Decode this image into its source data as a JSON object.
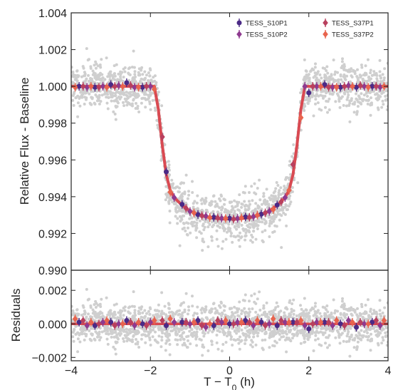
{
  "chart_data": [
    {
      "type": "scatter",
      "panel": "top",
      "title": "",
      "xlabel": "",
      "ylabel": "Relative Flux - Baseline",
      "xlim": [
        -4,
        4
      ],
      "ylim": [
        0.99,
        1.004
      ],
      "yticks": [
        "0.990",
        "0.992",
        "0.994",
        "0.996",
        "0.998",
        "1.000",
        "1.002",
        "1.004"
      ],
      "legend_position": "top-right",
      "model": {
        "name": "",
        "color": "#d94a52",
        "x": [
          -4.0,
          -1.9,
          -1.8,
          -1.7,
          -1.6,
          -1.5,
          -1.4,
          -1.2,
          -1.0,
          -0.8,
          -0.6,
          -0.4,
          -0.2,
          0.0,
          0.2,
          0.4,
          0.6,
          0.8,
          1.0,
          1.2,
          1.4,
          1.5,
          1.6,
          1.7,
          1.8,
          1.9,
          4.0
        ],
        "y": [
          1.0,
          1.0,
          0.99875,
          0.9968,
          0.9952,
          0.99435,
          0.99395,
          0.99353,
          0.99322,
          0.99303,
          0.9929,
          0.99283,
          0.99279,
          0.99278,
          0.99279,
          0.99283,
          0.9929,
          0.99303,
          0.99322,
          0.99353,
          0.99395,
          0.99435,
          0.9952,
          0.9968,
          0.99875,
          1.0,
          1.0
        ]
      },
      "series": [
        {
          "name": "TESS_S10P1",
          "color": "#4b2a86",
          "marker": "circle",
          "x": [
            -3.8,
            -3.4,
            -3.0,
            -2.6,
            -2.2,
            -1.6,
            -1.2,
            -0.8,
            -0.4,
            0.0,
            0.4,
            0.8,
            1.2,
            2.0,
            2.4,
            2.8,
            3.2,
            3.6
          ],
          "y": [
            1.0,
            0.99995,
            1.0001,
            1.0002,
            0.99995,
            0.99535,
            0.99358,
            0.99303,
            0.99288,
            0.99282,
            0.9929,
            0.99305,
            0.99355,
            0.99965,
            1.0001,
            0.99995,
            0.99995,
            1.0
          ]
        },
        {
          "name": "TESS_S10P2",
          "color": "#8e3a8f",
          "marker": "diamond",
          "x": [
            -3.6,
            -3.2,
            -2.8,
            -2.4,
            -2.0,
            -1.4,
            -1.0,
            -0.6,
            -0.2,
            0.2,
            0.6,
            1.0,
            1.4,
            1.9,
            2.2,
            2.6,
            3.0,
            3.4,
            3.8
          ],
          "y": [
            0.99995,
            1.0,
            1.00005,
            0.99995,
            1.0,
            0.99395,
            0.9932,
            0.99295,
            0.99283,
            0.99282,
            0.99292,
            0.9932,
            0.99395,
            1.0,
            1.0,
            0.99995,
            1.00005,
            1.0,
            0.99995
          ]
        },
        {
          "name": "TESS_S37P1",
          "color": "#b8405e",
          "marker": "diamond",
          "x": [
            -3.7,
            -3.3,
            -2.9,
            -2.5,
            -2.1,
            -1.7,
            -1.1,
            -0.7,
            -0.3,
            0.1,
            0.5,
            0.9,
            1.3,
            1.6,
            2.1,
            2.5,
            2.9,
            3.3,
            3.7
          ],
          "y": [
            1.0,
            0.99995,
            1.0,
            1.00005,
            1.0,
            0.99725,
            0.99337,
            0.99297,
            0.99285,
            0.99278,
            0.99288,
            0.99312,
            0.99372,
            0.99575,
            1.0,
            0.99995,
            1.0,
            1.00005,
            1.0
          ]
        },
        {
          "name": "TESS_S37P2",
          "color": "#e8644e",
          "marker": "diamond",
          "x": [
            -3.9,
            -3.5,
            -3.1,
            -2.7,
            -2.3,
            -1.9,
            -1.5,
            -0.9,
            -0.5,
            -0.1,
            0.3,
            0.7,
            1.1,
            1.5,
            1.8,
            2.3,
            2.7,
            3.1,
            3.5,
            3.9
          ],
          "y": [
            0.99995,
            1.0,
            0.99995,
            1.0,
            0.99995,
            0.99985,
            0.99425,
            0.99312,
            0.99287,
            0.99282,
            0.99285,
            0.993,
            0.9933,
            0.99435,
            0.9983,
            1.0,
            0.99995,
            1.0,
            0.99995,
            1.0
          ]
        }
      ],
      "raw_points": {
        "color": "#cfcfcf",
        "count": 1800,
        "scatter_sigma": 0.0006
      }
    },
    {
      "type": "scatter",
      "panel": "bottom",
      "title": "",
      "xlabel": "T − T",
      "xlabel_sub": "0",
      "xlabel_unit": " (h)",
      "ylabel": "Residuals",
      "xlim": [
        -4,
        4
      ],
      "ylim": [
        -0.0022,
        0.0032
      ],
      "xticks": [
        "−4",
        "−2",
        "0",
        "2",
        "4"
      ],
      "xtick_values": [
        -4,
        -2,
        0,
        2,
        4
      ],
      "yticks": [
        "−0.002",
        "0.000",
        "0.002"
      ],
      "ytick_values": [
        -0.002,
        0.0,
        0.002
      ],
      "zero_line_color": "#d94a52",
      "series": [
        {
          "name": "TESS_S10P1",
          "color": "#4b2a86",
          "marker": "circle",
          "x": [
            -3.8,
            -3.4,
            -3.0,
            -2.6,
            -2.2,
            -1.6,
            -1.2,
            -0.8,
            -0.4,
            0.0,
            0.4,
            0.8,
            1.2,
            1.6,
            2.0,
            2.4,
            2.8,
            3.2,
            3.6
          ],
          "y": [
            0.0001,
            -0.0001,
            0.0001,
            0.0002,
            0.0,
            -0.0001,
            0.0001,
            0.0002,
            -0.0001,
            0.0,
            0.0002,
            0.0001,
            -0.0001,
            0.0001,
            -0.0003,
            0.0001,
            0.0,
            -0.0002,
            0.0001
          ]
        },
        {
          "name": "TESS_S10P2",
          "color": "#8e3a8f",
          "marker": "diamond",
          "x": [
            -3.6,
            -3.2,
            -2.8,
            -2.4,
            -2.0,
            -1.4,
            -1.0,
            -0.6,
            -0.2,
            0.2,
            0.6,
            1.0,
            1.4,
            1.9,
            2.2,
            2.6,
            3.0,
            3.4,
            3.8
          ],
          "y": [
            -0.0001,
            0.0001,
            0.0,
            -0.0001,
            0.0001,
            0.0001,
            0.0,
            -0.0002,
            0.0001,
            0.0001,
            -0.0001,
            0.0,
            0.0001,
            -0.0001,
            0.0001,
            -0.0001,
            0.0002,
            0.0,
            -0.0001
          ]
        },
        {
          "name": "TESS_S37P1",
          "color": "#b8405e",
          "marker": "diamond",
          "x": [
            -3.7,
            -3.3,
            -2.9,
            -2.5,
            -2.1,
            -1.7,
            -1.1,
            -0.7,
            -0.3,
            0.1,
            0.5,
            0.9,
            1.3,
            1.7,
            2.1,
            2.5,
            2.9,
            3.3,
            3.7
          ],
          "y": [
            0.0002,
            0.0,
            -0.0001,
            0.0001,
            -0.0001,
            0.0002,
            0.0001,
            -0.0001,
            0.0002,
            0.0,
            0.0001,
            -0.0001,
            0.0002,
            0.0001,
            0.0,
            0.0001,
            -0.0001,
            0.0001,
            0.0002
          ]
        },
        {
          "name": "TESS_S37P2",
          "color": "#e8644e",
          "marker": "diamond",
          "x": [
            -3.9,
            -3.5,
            -3.1,
            -2.7,
            -2.3,
            -1.9,
            -1.5,
            -0.9,
            -0.5,
            -0.1,
            0.3,
            0.7,
            1.1,
            1.5,
            1.8,
            2.3,
            2.7,
            3.1,
            3.5,
            3.9
          ],
          "y": [
            0.0003,
            0.0001,
            0.0002,
            0.0,
            0.0001,
            0.0002,
            0.0003,
            0.0001,
            0.0,
            0.0002,
            0.0001,
            0.0002,
            0.0003,
            0.0001,
            0.0002,
            0.0001,
            0.0002,
            0.0001,
            0.0,
            0.0002
          ]
        }
      ],
      "raw_points": {
        "color": "#cfcfcf",
        "count": 1800,
        "scatter_sigma": 0.0006
      }
    }
  ]
}
